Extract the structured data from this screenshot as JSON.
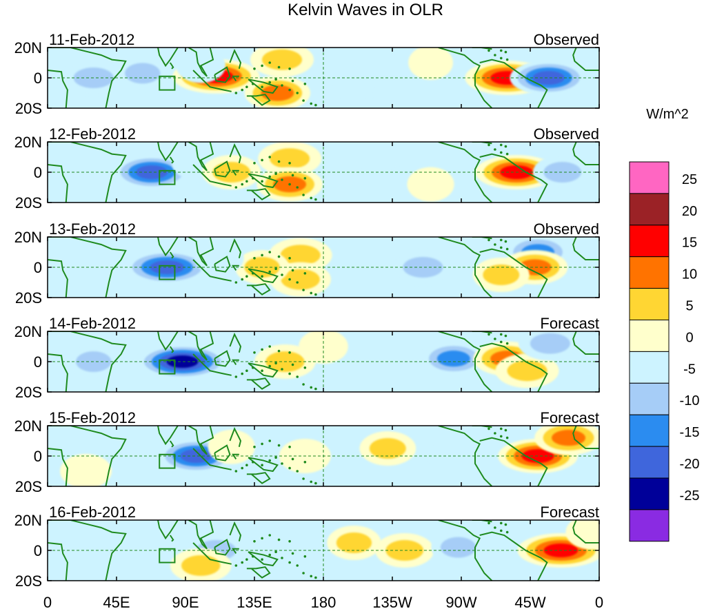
{
  "chart_data": {
    "type": "heatmap",
    "title": "Kelvin Waves in OLR",
    "colorbar": {
      "units_label": "W/m^2",
      "tick_labels": [
        "25",
        "20",
        "15",
        "10",
        "5",
        "0",
        "-5",
        "-10",
        "-15",
        "-20",
        "-25"
      ],
      "colors": [
        "#ff66c2",
        "#9b2226",
        "#ff0000",
        "#ff7300",
        "#ffd633",
        "#ffffcc",
        "#cdf3ff",
        "#a6cdf7",
        "#2b8cf0",
        "#3f66dc",
        "#000099",
        "#8a2be2"
      ],
      "level_values": [
        30,
        25,
        20,
        15,
        10,
        5,
        0,
        -5,
        -10,
        -15,
        -20,
        -25,
        -30
      ]
    },
    "x_axis": {
      "tick_labels": [
        "0",
        "45E",
        "90E",
        "135E",
        "180",
        "135W",
        "90W",
        "45W",
        "0"
      ],
      "longitudes": [
        0,
        45,
        90,
        135,
        180,
        225,
        270,
        315,
        360
      ],
      "range": [
        0,
        360
      ]
    },
    "y_axis": {
      "tick_labels": [
        "20N",
        "0",
        "20S"
      ],
      "latitudes": [
        20,
        0,
        -20
      ],
      "range": [
        -20,
        20
      ]
    },
    "panels": [
      {
        "date": "11-Feb-2012",
        "status": "Observed",
        "anomalies": [
          {
            "lon": 30,
            "lat": 0,
            "value": -12
          },
          {
            "lon": 62,
            "lat": 3,
            "value": -8
          },
          {
            "lon": 110,
            "lat": 1,
            "value": 22
          },
          {
            "lon": 153,
            "lat": 12,
            "value": 12
          },
          {
            "lon": 150,
            "lat": -10,
            "value": 13
          },
          {
            "lon": 100,
            "lat": 8,
            "value": -6
          },
          {
            "lon": 300,
            "lat": 0,
            "value": 21
          },
          {
            "lon": 327,
            "lat": 0,
            "value": -18
          },
          {
            "lon": 250,
            "lat": 10,
            "value": 4
          },
          {
            "lon": 200,
            "lat": -5,
            "value": -4
          }
        ]
      },
      {
        "date": "12-Feb-2012",
        "status": "Observed",
        "anomalies": [
          {
            "lon": 68,
            "lat": 0,
            "value": -18
          },
          {
            "lon": 98,
            "lat": 6,
            "value": -7
          },
          {
            "lon": 158,
            "lat": 9,
            "value": 12
          },
          {
            "lon": 158,
            "lat": -8,
            "value": 13
          },
          {
            "lon": 120,
            "lat": 0,
            "value": 10
          },
          {
            "lon": 306,
            "lat": 0,
            "value": 20
          },
          {
            "lon": 336,
            "lat": 0,
            "value": -10
          },
          {
            "lon": 215,
            "lat": 10,
            "value": -5
          },
          {
            "lon": 250,
            "lat": -8,
            "value": 5
          }
        ]
      },
      {
        "date": "13-Feb-2012",
        "status": "Observed",
        "anomalies": [
          {
            "lon": 78,
            "lat": 0,
            "value": -22
          },
          {
            "lon": 165,
            "lat": 8,
            "value": 12
          },
          {
            "lon": 165,
            "lat": -8,
            "value": 11
          },
          {
            "lon": 140,
            "lat": 0,
            "value": 8
          },
          {
            "lon": 245,
            "lat": 0,
            "value": -12
          },
          {
            "lon": 320,
            "lat": 10,
            "value": -13
          },
          {
            "lon": 318,
            "lat": 0,
            "value": 13
          },
          {
            "lon": 296,
            "lat": -5,
            "value": 9
          },
          {
            "lon": 112,
            "lat": 6,
            "value": -6
          }
        ]
      },
      {
        "date": "14-Feb-2012",
        "status": "Forecast",
        "anomalies": [
          {
            "lon": 88,
            "lat": 0,
            "value": -24
          },
          {
            "lon": 30,
            "lat": 0,
            "value": -8
          },
          {
            "lon": 155,
            "lat": 0,
            "value": 11
          },
          {
            "lon": 265,
            "lat": 2,
            "value": -13
          },
          {
            "lon": 300,
            "lat": 2,
            "value": 14
          },
          {
            "lon": 313,
            "lat": -6,
            "value": 12
          },
          {
            "lon": 328,
            "lat": 12,
            "value": -12
          },
          {
            "lon": 180,
            "lat": 10,
            "value": 6
          }
        ]
      },
      {
        "date": "15-Feb-2012",
        "status": "Forecast",
        "anomalies": [
          {
            "lon": 97,
            "lat": 0,
            "value": -18
          },
          {
            "lon": 168,
            "lat": 0,
            "value": 7
          },
          {
            "lon": 222,
            "lat": 5,
            "value": 9
          },
          {
            "lon": 263,
            "lat": 0,
            "value": -6
          },
          {
            "lon": 320,
            "lat": 0,
            "value": 19
          },
          {
            "lon": 340,
            "lat": 12,
            "value": 14
          },
          {
            "lon": 25,
            "lat": -10,
            "value": 7
          },
          {
            "lon": 120,
            "lat": 6,
            "value": 5
          }
        ]
      },
      {
        "date": "16-Feb-2012",
        "status": "Forecast",
        "anomalies": [
          {
            "lon": 110,
            "lat": 0,
            "value": -12
          },
          {
            "lon": 200,
            "lat": 5,
            "value": 8
          },
          {
            "lon": 233,
            "lat": 0,
            "value": 10
          },
          {
            "lon": 268,
            "lat": 2,
            "value": -8
          },
          {
            "lon": 335,
            "lat": 0,
            "value": 22
          },
          {
            "lon": 100,
            "lat": -10,
            "value": 11
          },
          {
            "lon": 355,
            "lat": 12,
            "value": 7
          },
          {
            "lon": 148,
            "lat": 8,
            "value": -5
          }
        ]
      }
    ]
  }
}
